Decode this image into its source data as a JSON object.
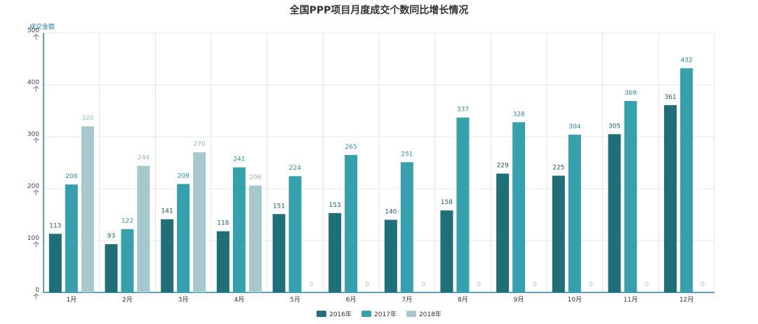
{
  "chart_data": {
    "type": "bar",
    "title": "全国PPP项目月度成交个数同比增长情况",
    "ylabel": "成交金额",
    "xlabel": "",
    "ylim": [
      0,
      500
    ],
    "yticks": [
      "0\n个",
      "100\n个",
      "200\n个",
      "300\n个",
      "400\n个",
      "500\n个"
    ],
    "categories": [
      "1月",
      "2月",
      "3月",
      "4月",
      "5月",
      "6月",
      "7月",
      "8月",
      "9月",
      "10月",
      "11月",
      "12月"
    ],
    "series": [
      {
        "name": "2016年",
        "color": "#1f6e78",
        "values": [
          113,
          93,
          141,
          118,
          151,
          153,
          140,
          158,
          229,
          225,
          305,
          361
        ]
      },
      {
        "name": "2017年",
        "color": "#36a0ad",
        "values": [
          208,
          122,
          209,
          241,
          224,
          265,
          251,
          337,
          328,
          304,
          369,
          432
        ]
      },
      {
        "name": "2018年",
        "color": "#a7c8cd",
        "values": [
          320,
          244,
          270,
          206,
          0,
          0,
          0,
          0,
          0,
          0,
          0,
          0
        ]
      }
    ],
    "grid": true,
    "legend_position": "bottom-center"
  }
}
